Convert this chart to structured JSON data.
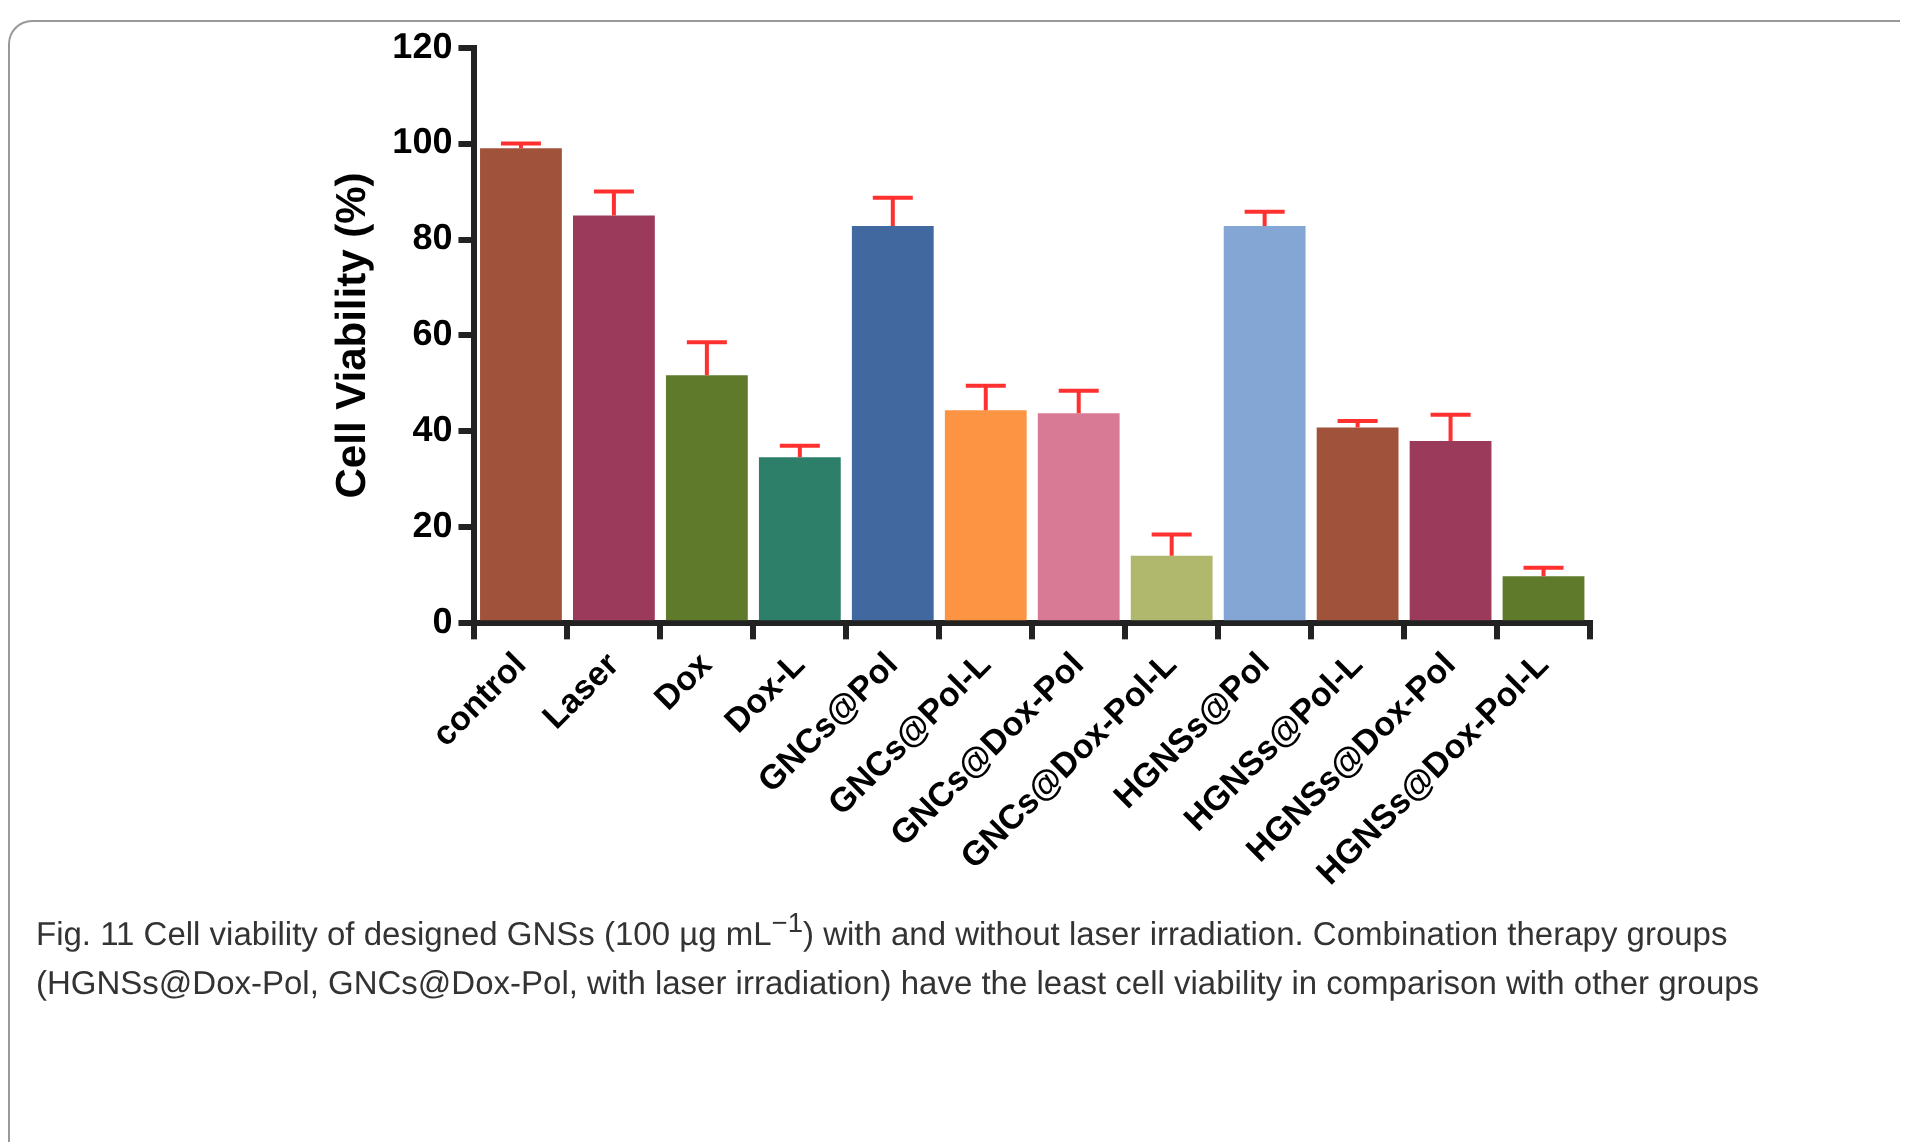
{
  "chart_data": {
    "type": "bar",
    "ylabel": "Cell Viability (%)",
    "categories": [
      "control",
      "Laser",
      "Dox",
      "Dox-L",
      "GNCs@Pol",
      "GNCs@Pol-L",
      "GNCs@Dox-Pol",
      "GNCs@Dox-Pol-L",
      "HGNSs@Pol",
      "HGNSs@Pol-L",
      "HGNSs@Dox-Pol",
      "HGNSs@Dox-Pol-L"
    ],
    "values": [
      99,
      85,
      51.7,
      34.6,
      82.8,
      44.4,
      43.8,
      14.1,
      82.8,
      40.8,
      38,
      9.8
    ],
    "errors": [
      [
        99,
        100
      ],
      [
        85,
        90
      ],
      [
        51.7,
        58.6
      ],
      [
        34.6,
        37
      ],
      [
        82.8,
        88.7
      ],
      [
        44.4,
        49.5
      ],
      [
        43.8,
        48.5
      ],
      [
        14.1,
        18.5
      ],
      [
        82.8,
        85.8
      ],
      [
        40.8,
        42.2
      ],
      [
        38,
        43.5
      ],
      [
        9.8,
        11.6
      ]
    ],
    "colors": [
      "#a0523a",
      "#9c3a5c",
      "#5e7a2a",
      "#2d7f6a",
      "#42699f",
      "#fd9444",
      "#d87a96",
      "#afb86c",
      "#84a6d5",
      "#a0523a",
      "#9c3a5c",
      "#5e7a2a"
    ],
    "ylim": [
      0,
      120
    ],
    "yticks": [
      0,
      20,
      40,
      60,
      80,
      100,
      120
    ],
    "grid": false,
    "legend": false,
    "annotations": [
      "Fig. 11  Cell viability of designed GNSs (100 µg mL$^{−1}$) with and without laser irradiation. Combination therapy groups (HGNSs@Dox-Pol, GNCs@Dox-Pol, with laser irradiation) have the least cell viability in comparison with other groups"
    ]
  }
}
